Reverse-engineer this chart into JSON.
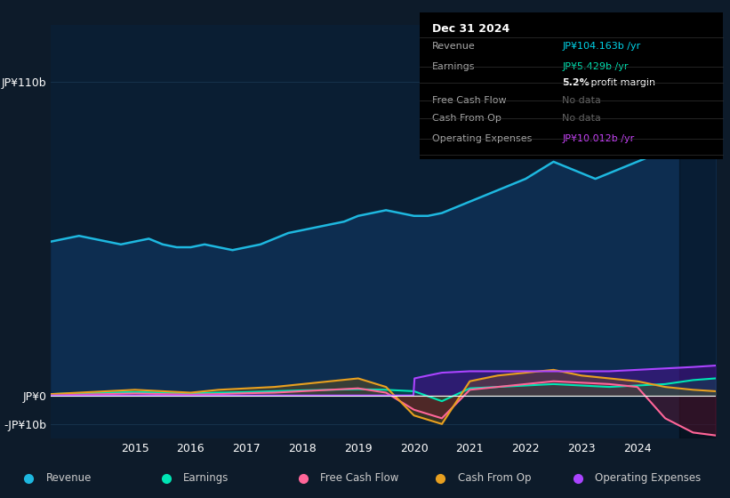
{
  "background_color": "#0d1b2a",
  "chart_bg": "#0a1e33",
  "ylim": [
    -15,
    130
  ],
  "yticks": [
    -10,
    0,
    110
  ],
  "ytick_labels": [
    "-JP¥10b",
    "JP¥0",
    "JP¥110b"
  ],
  "xlim_start": 2013.5,
  "xlim_end": 2025.4,
  "xtick_years": [
    2015,
    2016,
    2017,
    2018,
    2019,
    2020,
    2021,
    2022,
    2023,
    2024
  ],
  "revenue": {
    "color": "#1eb8e0",
    "fill_color": "#0d2d50",
    "label": "Revenue",
    "x": [
      2013.5,
      2014.0,
      2014.25,
      2014.5,
      2014.75,
      2015.0,
      2015.25,
      2015.5,
      2015.75,
      2016.0,
      2016.25,
      2016.5,
      2016.75,
      2017.0,
      2017.25,
      2017.5,
      2017.75,
      2018.0,
      2018.25,
      2018.5,
      2018.75,
      2019.0,
      2019.25,
      2019.5,
      2019.75,
      2020.0,
      2020.25,
      2020.5,
      2020.75,
      2021.0,
      2021.25,
      2021.5,
      2021.75,
      2022.0,
      2022.25,
      2022.5,
      2022.75,
      2023.0,
      2023.25,
      2023.5,
      2023.75,
      2024.0,
      2024.25,
      2024.5,
      2024.75,
      2025.0,
      2025.4
    ],
    "y": [
      54,
      56,
      55,
      54,
      53,
      54,
      55,
      53,
      52,
      52,
      53,
      52,
      51,
      52,
      53,
      55,
      57,
      58,
      59,
      60,
      61,
      63,
      64,
      65,
      64,
      63,
      63,
      64,
      66,
      68,
      70,
      72,
      74,
      76,
      79,
      82,
      80,
      78,
      76,
      78,
      80,
      82,
      84,
      86,
      90,
      104,
      112
    ]
  },
  "earnings": {
    "color": "#00e5b4",
    "label": "Earnings",
    "x": [
      2013.5,
      2014.0,
      2014.5,
      2015.0,
      2015.5,
      2016.0,
      2016.5,
      2017.0,
      2017.5,
      2018.0,
      2018.5,
      2019.0,
      2019.5,
      2020.0,
      2020.5,
      2021.0,
      2021.5,
      2022.0,
      2022.5,
      2023.0,
      2023.5,
      2024.0,
      2024.5,
      2025.0,
      2025.4
    ],
    "y": [
      0.5,
      0.8,
      1.0,
      1.2,
      1.0,
      0.8,
      1.0,
      1.2,
      1.5,
      1.8,
      2.0,
      2.2,
      2.0,
      1.5,
      -2.0,
      2.5,
      3.0,
      3.5,
      4.0,
      3.5,
      3.0,
      3.5,
      4.0,
      5.4,
      6.0
    ]
  },
  "free_cash_flow": {
    "color": "#ff6699",
    "label": "Free Cash Flow",
    "x": [
      2013.5,
      2014.0,
      2014.5,
      2015.0,
      2015.5,
      2016.0,
      2016.5,
      2017.0,
      2017.5,
      2018.0,
      2018.5,
      2019.0,
      2019.5,
      2020.0,
      2020.5,
      2021.0,
      2021.5,
      2022.0,
      2022.5,
      2023.0,
      2023.5,
      2024.0,
      2024.5,
      2025.0,
      2025.4
    ],
    "y": [
      0.2,
      0.3,
      0.5,
      0.7,
      0.5,
      0.3,
      0.5,
      0.8,
      1.0,
      1.5,
      2.0,
      2.5,
      1.0,
      -5.0,
      -8.0,
      2.0,
      3.0,
      4.0,
      5.0,
      4.5,
      4.0,
      3.0,
      -8.0,
      -13.0,
      -14.0
    ]
  },
  "cash_from_op": {
    "color": "#e8a020",
    "label": "Cash From Op",
    "x": [
      2013.5,
      2014.0,
      2014.5,
      2015.0,
      2015.5,
      2016.0,
      2016.5,
      2017.0,
      2017.5,
      2018.0,
      2018.5,
      2019.0,
      2019.5,
      2020.0,
      2020.5,
      2021.0,
      2021.5,
      2022.0,
      2022.5,
      2023.0,
      2023.5,
      2024.0,
      2024.5,
      2025.0,
      2025.4
    ],
    "y": [
      0.5,
      1.0,
      1.5,
      2.0,
      1.5,
      1.0,
      2.0,
      2.5,
      3.0,
      4.0,
      5.0,
      6.0,
      3.0,
      -7.0,
      -10.0,
      5.0,
      7.0,
      8.0,
      9.0,
      7.0,
      6.0,
      5.0,
      3.0,
      2.0,
      1.5
    ]
  },
  "operating_expenses": {
    "color": "#aa44ff",
    "label": "Operating Expenses",
    "x": [
      2013.5,
      2014.0,
      2014.5,
      2015.0,
      2015.5,
      2016.0,
      2016.5,
      2017.0,
      2017.5,
      2018.0,
      2018.5,
      2019.0,
      2019.5,
      2019.99,
      2020.01,
      2020.25,
      2020.5,
      2021.0,
      2021.5,
      2022.0,
      2022.5,
      2023.0,
      2023.5,
      2024.0,
      2024.5,
      2025.0,
      2025.4
    ],
    "y": [
      0,
      0,
      0,
      0,
      0,
      0,
      0,
      0,
      0,
      0,
      0,
      0,
      0,
      0,
      6,
      7,
      8,
      8.5,
      8.5,
      8.5,
      8.5,
      8.5,
      8.5,
      9.0,
      9.5,
      10.0,
      10.5
    ]
  },
  "legend": [
    {
      "label": "Revenue",
      "color": "#1eb8e0"
    },
    {
      "label": "Earnings",
      "color": "#00e5b4"
    },
    {
      "label": "Free Cash Flow",
      "color": "#ff6699"
    },
    {
      "label": "Cash From Op",
      "color": "#e8a020"
    },
    {
      "label": "Operating Expenses",
      "color": "#aa44ff"
    }
  ],
  "info_box": {
    "date": "Dec 31 2024",
    "rows": [
      {
        "label": "Revenue",
        "value": "JP¥104.163b /yr",
        "value_color": "#00d4e8"
      },
      {
        "label": "Earnings",
        "value": "JP¥5.429b /yr",
        "value_color": "#00e5b4"
      },
      {
        "label": "",
        "value": "5.2% profit margin",
        "value_color": "#ffffff"
      },
      {
        "label": "Free Cash Flow",
        "value": "No data",
        "value_color": "#666666"
      },
      {
        "label": "Cash From Op",
        "value": "No data",
        "value_color": "#666666"
      },
      {
        "label": "Operating Expenses",
        "value": "JP¥10.012b /yr",
        "value_color": "#cc44ff"
      }
    ]
  },
  "grid_color": "#1a3a55",
  "zero_line_color": "#ffffff",
  "label_color": "#ffffff",
  "text_color": "#aaaaaa",
  "dark_overlay_start": 2024.75
}
